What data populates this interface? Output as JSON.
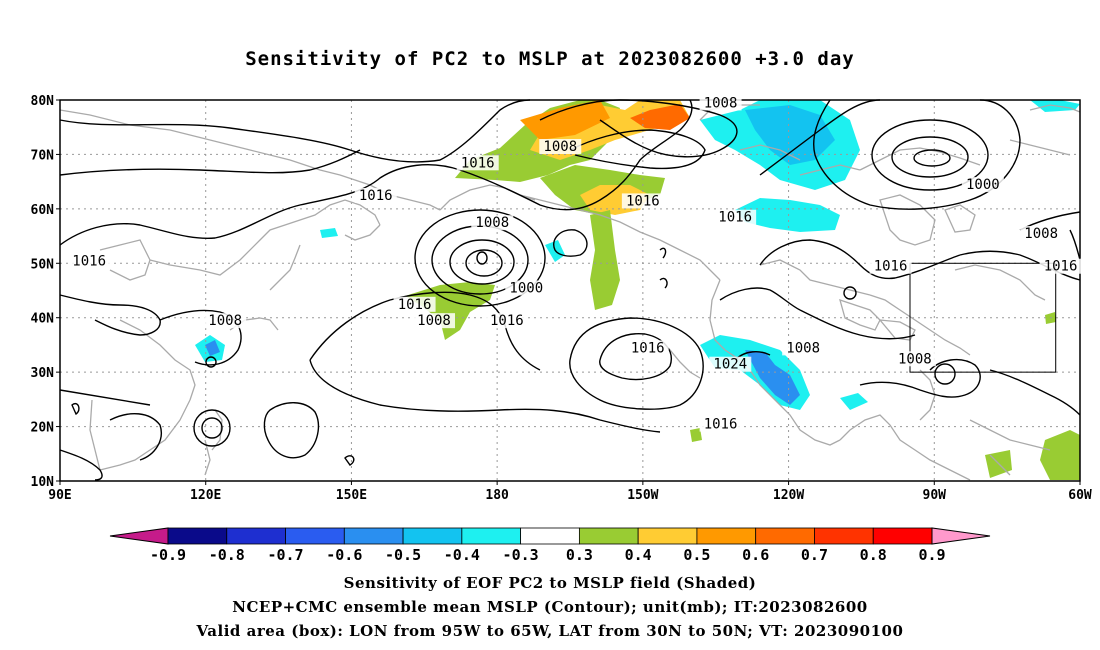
{
  "title": "Sensitivity of PC2 to MSLP at 2023082600 +3.0 day",
  "lat_labels": [
    "80N",
    "70N",
    "60N",
    "50N",
    "40N",
    "30N",
    "20N",
    "10N"
  ],
  "lon_labels": [
    "90E",
    "120E",
    "150E",
    "180",
    "150W",
    "120W",
    "90W",
    "60W"
  ],
  "contour_labels": [
    {
      "text": "1008",
      "lon": 193,
      "lat": 71
    },
    {
      "text": "1016",
      "lon": 176,
      "lat": 68
    },
    {
      "text": "1016",
      "lon": 155,
      "lat": 62
    },
    {
      "text": "1016",
      "lon": 96,
      "lat": 50
    },
    {
      "text": "1008",
      "lon": 226,
      "lat": 79
    },
    {
      "text": "1016",
      "lon": 210,
      "lat": 61
    },
    {
      "text": "1016",
      "lon": 229,
      "lat": 58
    },
    {
      "text": "1008",
      "lon": 179,
      "lat": 57
    },
    {
      "text": "1000",
      "lon": 186,
      "lat": 45
    },
    {
      "text": "1016",
      "lon": 163,
      "lat": 42
    },
    {
      "text": "1008",
      "lon": 167,
      "lat": 39
    },
    {
      "text": "1016",
      "lon": 182,
      "lat": 39
    },
    {
      "text": "1008",
      "lon": 124,
      "lat": 39
    },
    {
      "text": "1016",
      "lon": 211,
      "lat": 34
    },
    {
      "text": "1024",
      "lon": 228,
      "lat": 31
    },
    {
      "text": "1016",
      "lon": 226,
      "lat": 20
    },
    {
      "text": "1008",
      "lon": 243,
      "lat": 34
    },
    {
      "text": "1016",
      "lon": 261,
      "lat": 49
    },
    {
      "text": "1000",
      "lon": 280,
      "lat": 64
    },
    {
      "text": "1008",
      "lon": 292,
      "lat": 55
    },
    {
      "text": "1016",
      "lon": 296,
      "lat": 49
    },
    {
      "text": "1008",
      "lon": 266,
      "lat": 32
    }
  ],
  "valid_box": {
    "lon_min": 265,
    "lon_max": 295,
    "lat_min": 30,
    "lat_max": 50
  },
  "colorbar": {
    "labels": [
      "-0.9",
      "-0.8",
      "-0.7",
      "-0.6",
      "-0.5",
      "-0.4",
      "-0.3",
      "0.3",
      "0.4",
      "0.5",
      "0.6",
      "0.7",
      "0.8",
      "0.9"
    ],
    "colors": [
      "#c51b8a",
      "#0a0a8a",
      "#1e2fd0",
      "#2a5cf0",
      "#2a8ff0",
      "#13c3f0",
      "#1ef0f0",
      "#ffffff",
      "#99cc33",
      "#ffcc33",
      "#ff9900",
      "#ff6a00",
      "#ff3300",
      "#ff0000",
      "#ff99cc"
    ]
  },
  "caption_lines": [
    "Sensitivity of EOF PC2 to MSLP field (Shaded)",
    "NCEP+CMC ensemble mean MSLP (Contour); unit(mb); IT:2023082600",
    "Valid area (box): LON from 95W to 65W, LAT from 30N to 50N; VT: 2023090100"
  ]
}
